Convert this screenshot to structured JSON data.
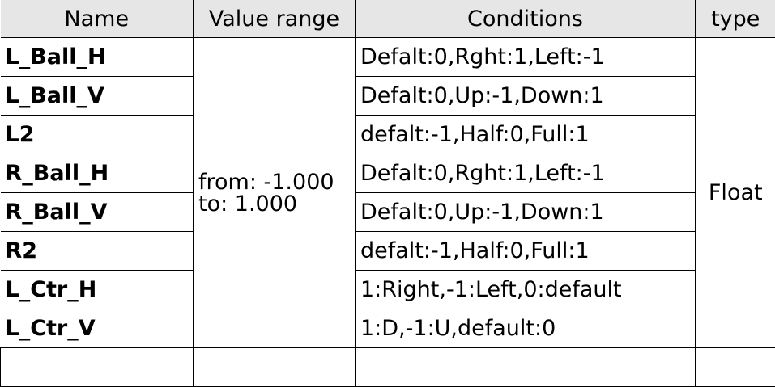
{
  "headers": {
    "name": "Name",
    "value_range": "Value range",
    "conditions": "Conditions",
    "type": "type"
  },
  "value_range": {
    "line1": "from: -1.000",
    "line2": "to: 1.000"
  },
  "type_value": "Float",
  "rows": [
    {
      "name": "L_Ball_H",
      "conditions": "Defalt:0,Rght:1,Left:-1"
    },
    {
      "name": "L_Ball_V",
      "conditions": "Defalt:0,Up:-1,Down:1"
    },
    {
      "name": "L2",
      "conditions": "defalt:-1,Half:0,Full:1"
    },
    {
      "name": "R_Ball_H",
      "conditions": "Defalt:0,Rght:1,Left:-1"
    },
    {
      "name": "R_Ball_V",
      "conditions": "Defalt:0,Up:-1,Down:1"
    },
    {
      "name": "R2",
      "conditions": "defalt:-1,Half:0,Full:1"
    },
    {
      "name": "L_Ctr_H",
      "conditions": "1:Right,-1:Left,0:default"
    },
    {
      "name": "L_Ctr_V",
      "conditions": "1:D,-1:U,default:0"
    }
  ]
}
